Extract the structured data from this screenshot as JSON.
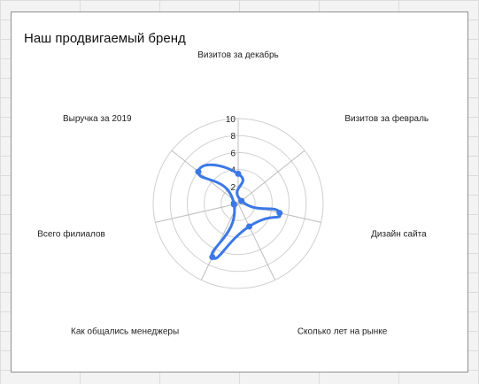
{
  "chart_data": {
    "type": "radar",
    "title": "Наш продвигаемый бренд",
    "categories": [
      "Визитов за декабрь",
      "Визитов за февраль",
      "Дизайн сайта",
      "Сколько лет на рынке",
      "Как общались менеджеры",
      "Всего филиалов",
      "Выручка за 2019"
    ],
    "series": [
      {
        "values": [
          3.5,
          0.5,
          5,
          3,
          7,
          0.5,
          6
        ]
      }
    ],
    "rlim": [
      0,
      10
    ],
    "rticks": [
      "0",
      "2",
      "4",
      "6",
      "8",
      "10"
    ],
    "grid": true,
    "legend": "none",
    "colors": {
      "series": "#3b78e7",
      "grid": "#d0d0d0",
      "axis": "#bdbdbd"
    }
  }
}
